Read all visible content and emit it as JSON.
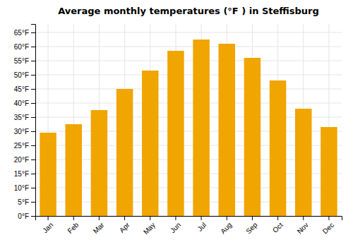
{
  "chart_data": {
    "type": "bar",
    "title": "Average monthly temperatures (°F ) in Steffisburg",
    "categories": [
      "Jan",
      "Feb",
      "Mar",
      "Apr",
      "May",
      "Jun",
      "Jul",
      "Aug",
      "Sep",
      "Oct",
      "Nov",
      "Dec"
    ],
    "values": [
      29.5,
      32.5,
      37.5,
      45,
      51.5,
      58.5,
      62.5,
      61,
      56,
      48,
      38,
      31.5
    ],
    "color": "#F0A500",
    "ylim": [
      0,
      68
    ],
    "yticks": [
      {
        "value": 0,
        "label": "0°F"
      },
      {
        "value": 5,
        "label": "5°F"
      },
      {
        "value": 10,
        "label": "10°F"
      },
      {
        "value": 15,
        "label": "15°F"
      },
      {
        "value": 20,
        "label": "20°F"
      },
      {
        "value": 25,
        "label": "25°F"
      },
      {
        "value": 30,
        "label": "30°F"
      },
      {
        "value": 35,
        "label": "35°F"
      },
      {
        "value": 40,
        "label": "40°F"
      },
      {
        "value": 45,
        "label": "45°F"
      },
      {
        "value": 50,
        "label": "50°F"
      },
      {
        "value": 55,
        "label": "55°F"
      },
      {
        "value": 60,
        "label": "60°F"
      },
      {
        "value": 65,
        "label": "65°F"
      }
    ],
    "grid": true
  }
}
